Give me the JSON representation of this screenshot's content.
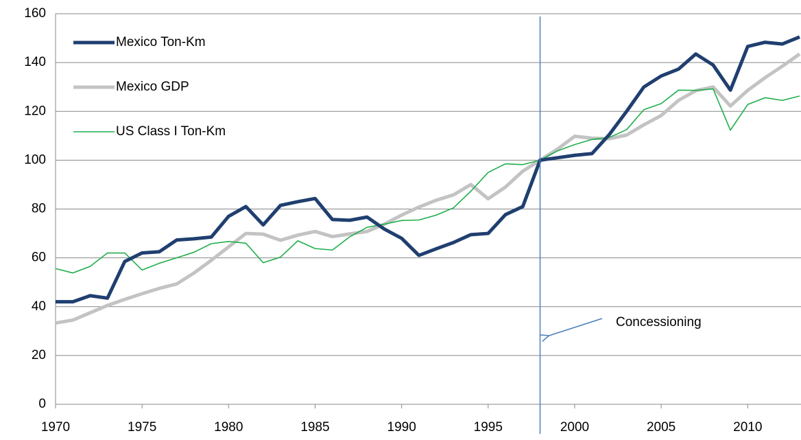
{
  "chart_data": {
    "type": "line",
    "x": [
      1970,
      1971,
      1972,
      1973,
      1974,
      1975,
      1976,
      1977,
      1978,
      1979,
      1980,
      1981,
      1982,
      1983,
      1984,
      1985,
      1986,
      1987,
      1988,
      1989,
      1990,
      1991,
      1992,
      1993,
      1994,
      1995,
      1996,
      1997,
      1998,
      1999,
      2000,
      2001,
      2002,
      2003,
      2004,
      2005,
      2006,
      2007,
      2008,
      2009,
      2010,
      2011,
      2012,
      2013
    ],
    "series": [
      {
        "name": "Mexico Ton-Km",
        "color": "#203f70",
        "width": 5,
        "values": [
          42,
          42,
          44.5,
          43.5,
          58.5,
          62,
          62.5,
          67.3,
          67.8,
          68.5,
          77,
          81,
          73.5,
          81.5,
          83,
          84.3,
          75.7,
          75.4,
          76.7,
          71.8,
          68,
          61,
          63.7,
          66.3,
          69.5,
          70,
          77.7,
          81,
          100,
          101,
          102,
          102.7,
          110.5,
          120,
          130,
          134.5,
          137.3,
          143.5,
          139,
          128.7,
          146.6,
          148.3,
          147.6,
          150.5
        ]
      },
      {
        "name": "Mexico GDP",
        "color": "#c3c3c3",
        "width": 5,
        "values": [
          33.3,
          34.5,
          37.5,
          40.5,
          43,
          45.3,
          47.5,
          49.3,
          53.8,
          59,
          64.5,
          70,
          69.7,
          67.2,
          69.3,
          70.8,
          68.7,
          69.8,
          70.8,
          73.8,
          77.5,
          80.8,
          83.6,
          85.8,
          90,
          84.2,
          89,
          95.5,
          100,
          104.5,
          109.8,
          109,
          108.8,
          110.3,
          114.5,
          118.3,
          124.5,
          128.5,
          130,
          122.2,
          128.6,
          133.8,
          138.5,
          143.5
        ]
      },
      {
        "name": "US Class I Ton-Km",
        "color": "#1fae4b",
        "width": 1.6,
        "values": [
          55.6,
          53.8,
          56.5,
          62,
          62,
          55,
          57.8,
          60,
          62.3,
          65.8,
          66.7,
          66,
          58,
          60.3,
          67,
          63.8,
          63.2,
          68.6,
          72.5,
          73.8,
          75.3,
          75.5,
          77.5,
          80.5,
          87.3,
          95,
          98.5,
          98.2,
          100,
          103.8,
          106.4,
          108.5,
          109.3,
          112.5,
          120.7,
          123.2,
          128.7,
          128.6,
          129.2,
          112.3,
          122.8,
          125.6,
          124.5,
          126.3
        ]
      }
    ],
    "xlim": [
      1970,
      2013
    ],
    "xticks": [
      1970,
      1975,
      1980,
      1985,
      1990,
      1995,
      2000,
      2005,
      2010
    ],
    "ylim": [
      0,
      160
    ],
    "yticks": [
      0,
      20,
      40,
      60,
      80,
      100,
      120,
      140,
      160
    ],
    "grid": true,
    "legend": "upper left",
    "annotation": {
      "text": "Concessioning",
      "x": 1998,
      "color": "#4a7ebb"
    }
  }
}
